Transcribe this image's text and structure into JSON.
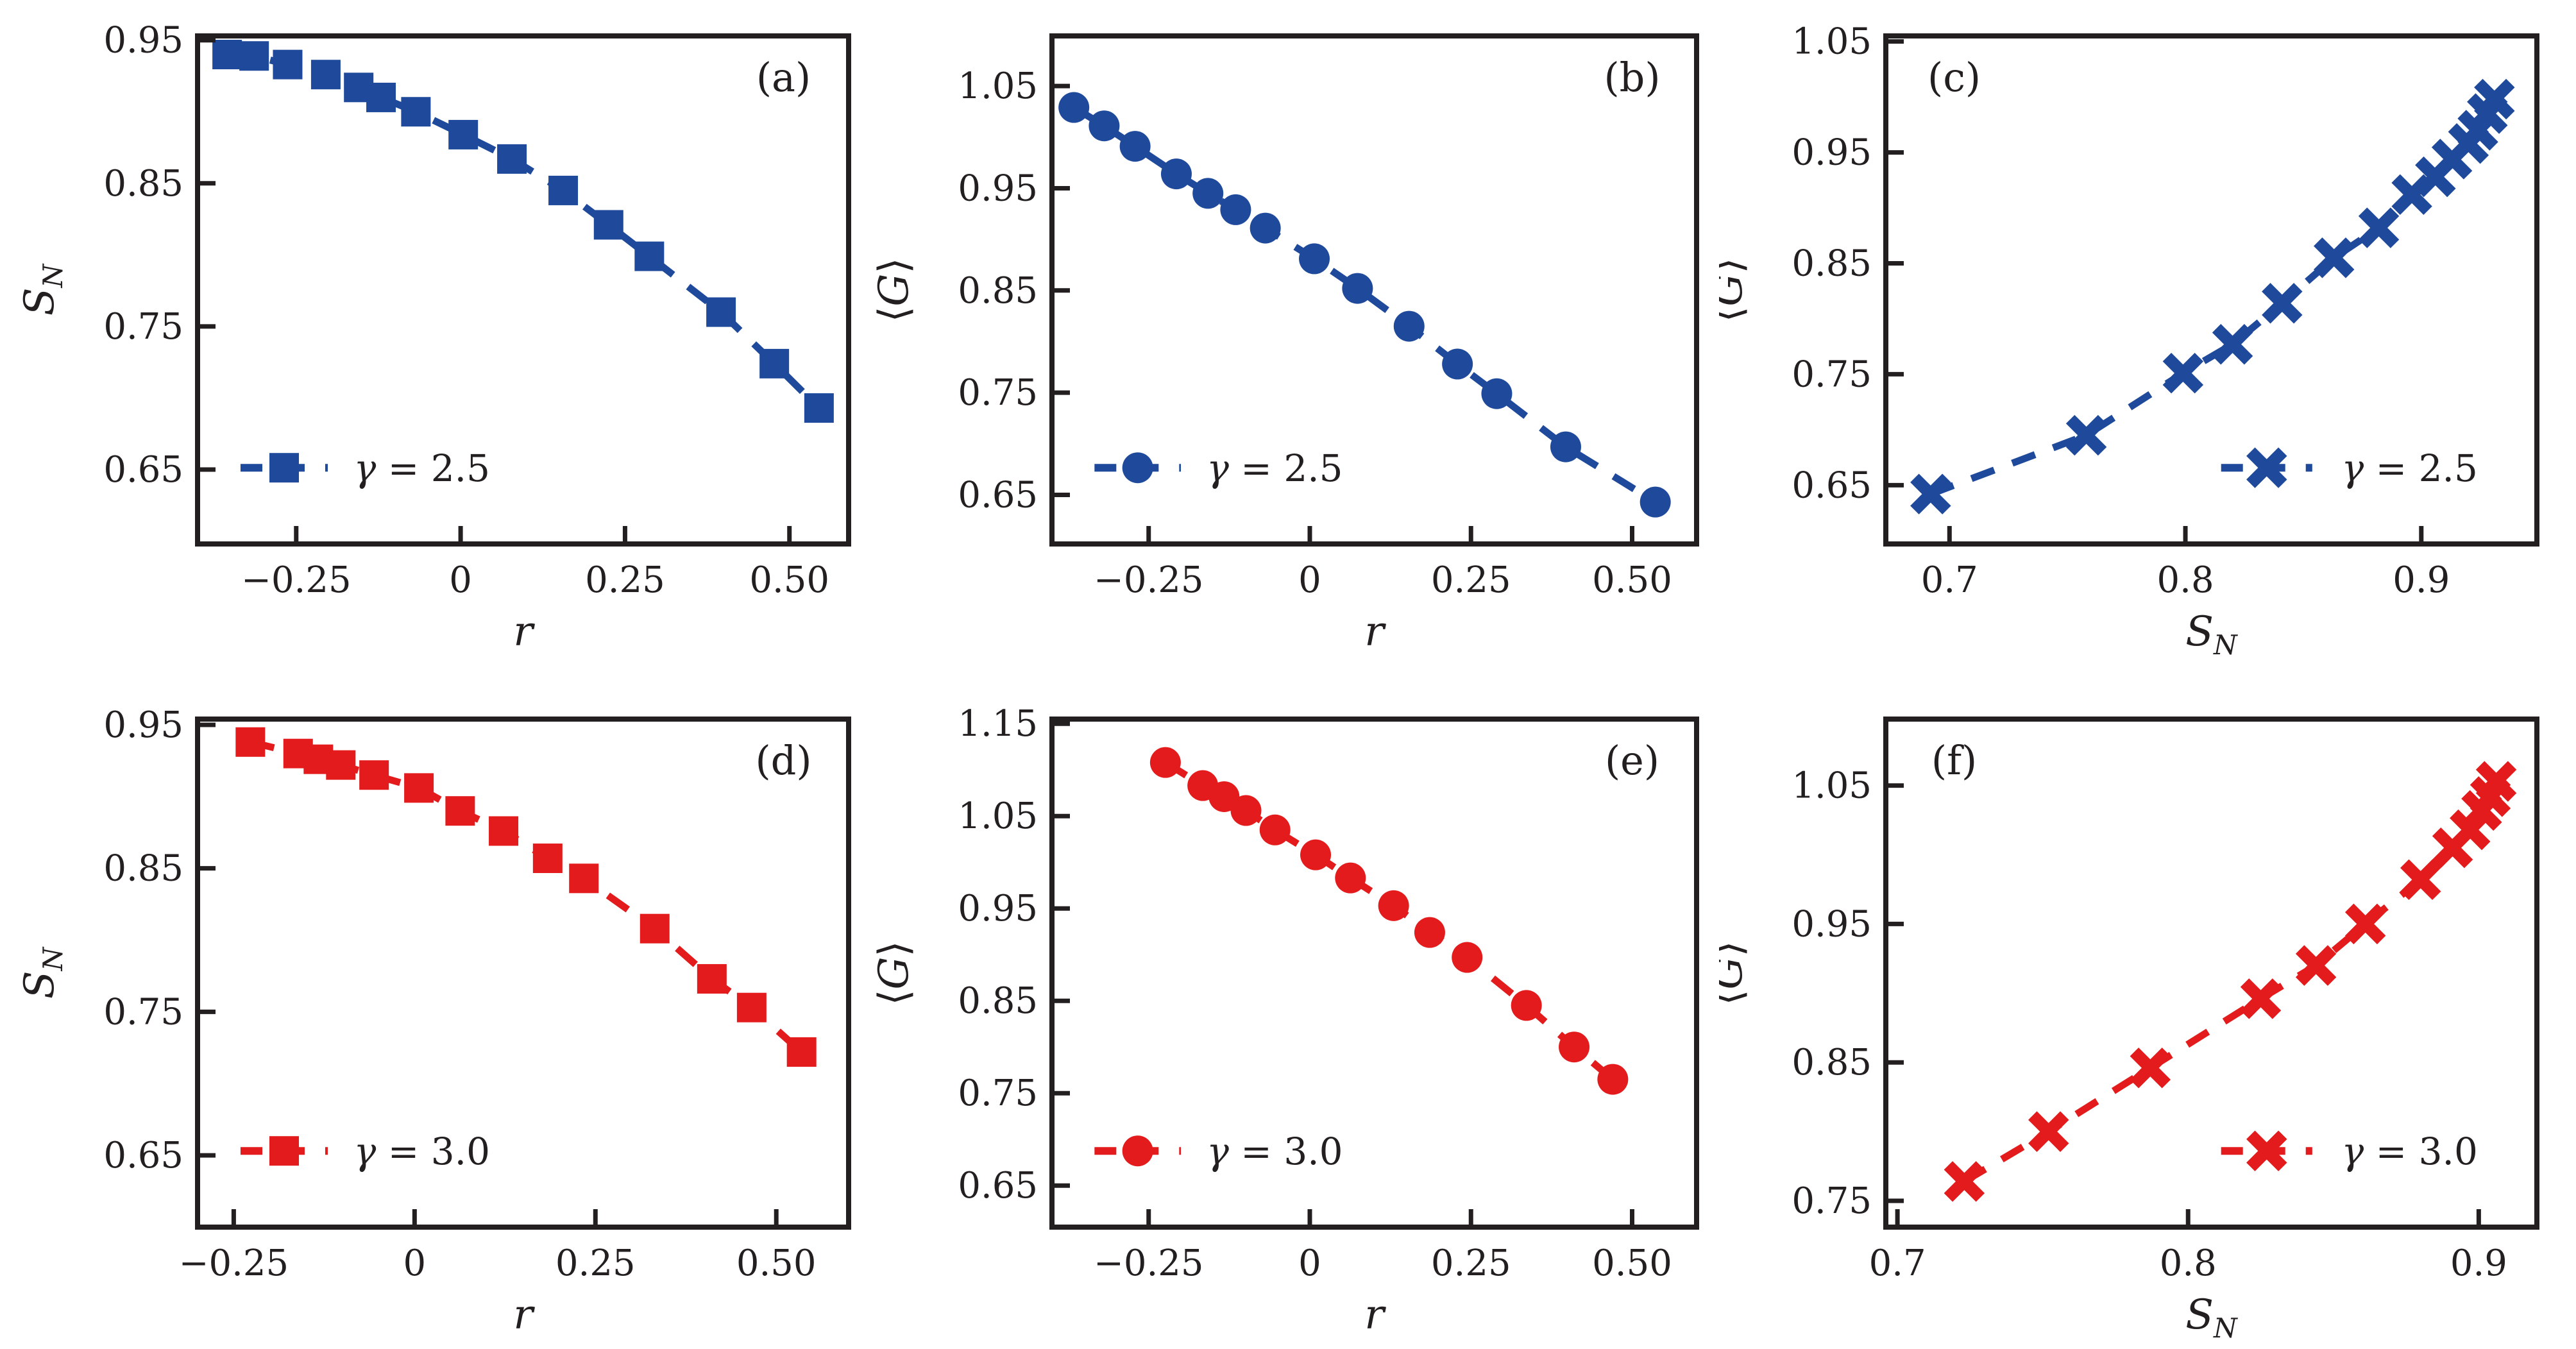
{
  "figure": {
    "background": "#ffffff",
    "text_color": "#231f20",
    "colors": {
      "blue": "#1f4a9b",
      "red": "#e31b1c"
    },
    "layout": {
      "rows": 2,
      "cols": 3,
      "grid": false,
      "line_style": "dashed",
      "ticks": "inward"
    }
  },
  "chart_data": [
    {
      "id": "a",
      "type": "line",
      "panel_label": "(a)",
      "panel_label_pos": "top-right",
      "marker": "square",
      "color": "#1f4a9b",
      "xlabel": "r",
      "ylabel": "S_N",
      "xlim": [
        -0.4,
        0.59
      ],
      "ylim": [
        0.598,
        0.953
      ],
      "xticks": [
        {
          "v": -0.25,
          "label": "−0.25"
        },
        {
          "v": 0,
          "label": "0"
        },
        {
          "v": 0.25,
          "label": "0.25"
        },
        {
          "v": 0.5,
          "label": "0.50"
        }
      ],
      "yticks": [
        {
          "v": 0.95,
          "label": "0.95"
        },
        {
          "v": 0.85,
          "label": "0.85"
        },
        {
          "v": 0.75,
          "label": "0.75"
        },
        {
          "v": 0.65,
          "label": "0.65"
        }
      ],
      "legend": {
        "label": "γ = 2.5",
        "position": "bottom-left"
      },
      "x": [
        -0.355,
        -0.314,
        -0.263,
        -0.205,
        -0.155,
        -0.121,
        -0.068,
        0.004,
        0.078,
        0.156,
        0.225,
        0.287,
        0.396,
        0.477,
        0.545
      ],
      "y": [
        0.94,
        0.939,
        0.933,
        0.926,
        0.917,
        0.91,
        0.9,
        0.884,
        0.867,
        0.845,
        0.821,
        0.799,
        0.76,
        0.724,
        0.693
      ]
    },
    {
      "id": "b",
      "type": "line",
      "panel_label": "(b)",
      "panel_label_pos": "top-right",
      "marker": "circle",
      "color": "#1f4a9b",
      "xlabel": "r",
      "ylabel": "⟨G⟩",
      "xlim": [
        -0.4,
        0.6
      ],
      "ylim": [
        0.602,
        1.099
      ],
      "xticks": [
        {
          "v": -0.25,
          "label": "−0.25"
        },
        {
          "v": 0,
          "label": "0"
        },
        {
          "v": 0.25,
          "label": "0.25"
        },
        {
          "v": 0.5,
          "label": "0.50"
        }
      ],
      "yticks": [
        {
          "v": 1.05,
          "label": "1.05"
        },
        {
          "v": 0.95,
          "label": "0.95"
        },
        {
          "v": 0.85,
          "label": "0.85"
        },
        {
          "v": 0.75,
          "label": "0.75"
        },
        {
          "v": 0.65,
          "label": "0.65"
        }
      ],
      "legend": {
        "label": "γ = 2.5",
        "position": "bottom-left"
      },
      "x": [
        -0.366,
        -0.319,
        -0.271,
        -0.207,
        -0.158,
        -0.115,
        -0.069,
        0.007,
        0.074,
        0.154,
        0.229,
        0.29,
        0.397,
        0.536
      ],
      "y": [
        1.029,
        1.011,
        0.991,
        0.964,
        0.945,
        0.929,
        0.911,
        0.881,
        0.852,
        0.815,
        0.778,
        0.749,
        0.697,
        0.643
      ]
    },
    {
      "id": "c",
      "type": "line",
      "panel_label": "(c)",
      "panel_label_pos": "top-left",
      "marker": "x",
      "color": "#1f4a9b",
      "xlabel": "S_N",
      "ylabel": "⟨G⟩",
      "xlim": [
        0.673,
        0.949
      ],
      "ylim": [
        0.597,
        1.055
      ],
      "xticks": [
        {
          "v": 0.7,
          "label": "0.7"
        },
        {
          "v": 0.8,
          "label": "0.8"
        },
        {
          "v": 0.9,
          "label": "0.9"
        }
      ],
      "yticks": [
        {
          "v": 1.05,
          "label": "1.05"
        },
        {
          "v": 0.95,
          "label": "0.95"
        },
        {
          "v": 0.85,
          "label": "0.85"
        },
        {
          "v": 0.75,
          "label": "0.75"
        },
        {
          "v": 0.65,
          "label": "0.65"
        }
      ],
      "legend": {
        "label": "γ = 2.5",
        "position": "bottom-right"
      },
      "x": [
        0.692,
        0.758,
        0.799,
        0.82,
        0.841,
        0.863,
        0.882,
        0.896,
        0.906,
        0.913,
        0.92,
        0.924,
        0.928,
        0.931
      ],
      "y": [
        0.642,
        0.695,
        0.751,
        0.777,
        0.814,
        0.855,
        0.882,
        0.912,
        0.928,
        0.944,
        0.958,
        0.97,
        0.985,
        0.998
      ]
    },
    {
      "id": "d",
      "type": "line",
      "panel_label": "(d)",
      "panel_label_pos": "top-right",
      "marker": "square",
      "color": "#e31b1c",
      "xlabel": "r",
      "ylabel": "S_N",
      "xlim": [
        -0.3,
        0.6
      ],
      "ylim": [
        0.6,
        0.954
      ],
      "xticks": [
        {
          "v": -0.25,
          "label": "−0.25"
        },
        {
          "v": 0,
          "label": "0"
        },
        {
          "v": 0.25,
          "label": "0.25"
        },
        {
          "v": 0.5,
          "label": "0.50"
        }
      ],
      "yticks": [
        {
          "v": 0.95,
          "label": "0.95"
        },
        {
          "v": 0.85,
          "label": "0.85"
        },
        {
          "v": 0.75,
          "label": "0.75"
        },
        {
          "v": 0.65,
          "label": "0.65"
        }
      ],
      "legend": {
        "label": "γ = 3.0",
        "position": "bottom-left"
      },
      "x": [
        -0.227,
        -0.161,
        -0.133,
        -0.102,
        -0.056,
        0.006,
        0.063,
        0.123,
        0.184,
        0.234,
        0.332,
        0.411,
        0.466,
        0.535
      ],
      "y": [
        0.938,
        0.93,
        0.926,
        0.922,
        0.915,
        0.906,
        0.89,
        0.876,
        0.857,
        0.843,
        0.808,
        0.773,
        0.753,
        0.722
      ]
    },
    {
      "id": "e",
      "type": "line",
      "panel_label": "(e)",
      "panel_label_pos": "top-right",
      "marker": "circle",
      "color": "#e31b1c",
      "xlabel": "r",
      "ylabel": "⟨G⟩",
      "xlim": [
        -0.4,
        0.6
      ],
      "ylim": [
        0.605,
        1.155
      ],
      "xticks": [
        {
          "v": -0.25,
          "label": "−0.25"
        },
        {
          "v": 0,
          "label": "0"
        },
        {
          "v": 0.25,
          "label": "0.25"
        },
        {
          "v": 0.5,
          "label": "0.50"
        }
      ],
      "yticks": [
        {
          "v": 1.15,
          "label": "1.15"
        },
        {
          "v": 1.05,
          "label": "1.05"
        },
        {
          "v": 0.95,
          "label": "0.95"
        },
        {
          "v": 0.85,
          "label": "0.85"
        },
        {
          "v": 0.75,
          "label": "0.75"
        },
        {
          "v": 0.65,
          "label": "0.65"
        }
      ],
      "legend": {
        "label": "γ = 3.0",
        "position": "bottom-left"
      },
      "x": [
        -0.224,
        -0.166,
        -0.133,
        -0.099,
        -0.054,
        0.009,
        0.063,
        0.13,
        0.186,
        0.244,
        0.336,
        0.41,
        0.47
      ],
      "y": [
        1.108,
        1.083,
        1.071,
        1.056,
        1.035,
        1.008,
        0.983,
        0.953,
        0.924,
        0.897,
        0.845,
        0.8,
        0.765
      ]
    },
    {
      "id": "f",
      "type": "line",
      "panel_label": "(f)",
      "panel_label_pos": "top-left",
      "marker": "x",
      "color": "#e31b1c",
      "xlabel": "S_N",
      "ylabel": "⟨G⟩",
      "xlim": [
        0.696,
        0.92
      ],
      "ylim": [
        0.731,
        1.098
      ],
      "xticks": [
        {
          "v": 0.7,
          "label": "0.7"
        },
        {
          "v": 0.8,
          "label": "0.8"
        },
        {
          "v": 0.9,
          "label": "0.9"
        }
      ],
      "yticks": [
        {
          "v": 1.05,
          "label": "1.05"
        },
        {
          "v": 0.95,
          "label": "0.95"
        },
        {
          "v": 0.85,
          "label": "0.85"
        },
        {
          "v": 0.75,
          "label": "0.75"
        }
      ],
      "legend": {
        "label": "γ = 3.0",
        "position": "bottom-right"
      },
      "x": [
        0.723,
        0.752,
        0.787,
        0.825,
        0.844,
        0.861,
        0.88,
        0.891,
        0.897,
        0.901,
        0.904,
        0.906
      ],
      "y": [
        0.764,
        0.8,
        0.846,
        0.896,
        0.92,
        0.95,
        0.982,
        1.005,
        1.018,
        1.032,
        1.042,
        1.053
      ]
    }
  ]
}
